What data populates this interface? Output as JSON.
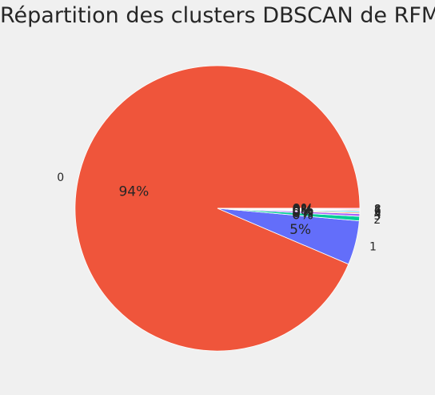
{
  "chart_data": {
    "type": "pie",
    "title": "Répartition des clusters DBSCAN de RFM",
    "categories": [
      "0",
      "1",
      "2",
      "3",
      "4",
      "5",
      "6",
      "7",
      "8"
    ],
    "values": [
      93.6,
      5.0,
      0.5,
      0.3,
      0.15,
      0.15,
      0.1,
      0.1,
      0.1
    ],
    "pct_labels": [
      "94%",
      "5%",
      "0%",
      "0%",
      "0%",
      "0%",
      "0%",
      "0%",
      "0%"
    ],
    "colors": [
      "#EF553B",
      "#636EFA",
      "#00CC96",
      "#AB63FA",
      "#FFA15A",
      "#19D3F3",
      "#FF6692",
      "#B6E880",
      "#FF97FF"
    ]
  }
}
